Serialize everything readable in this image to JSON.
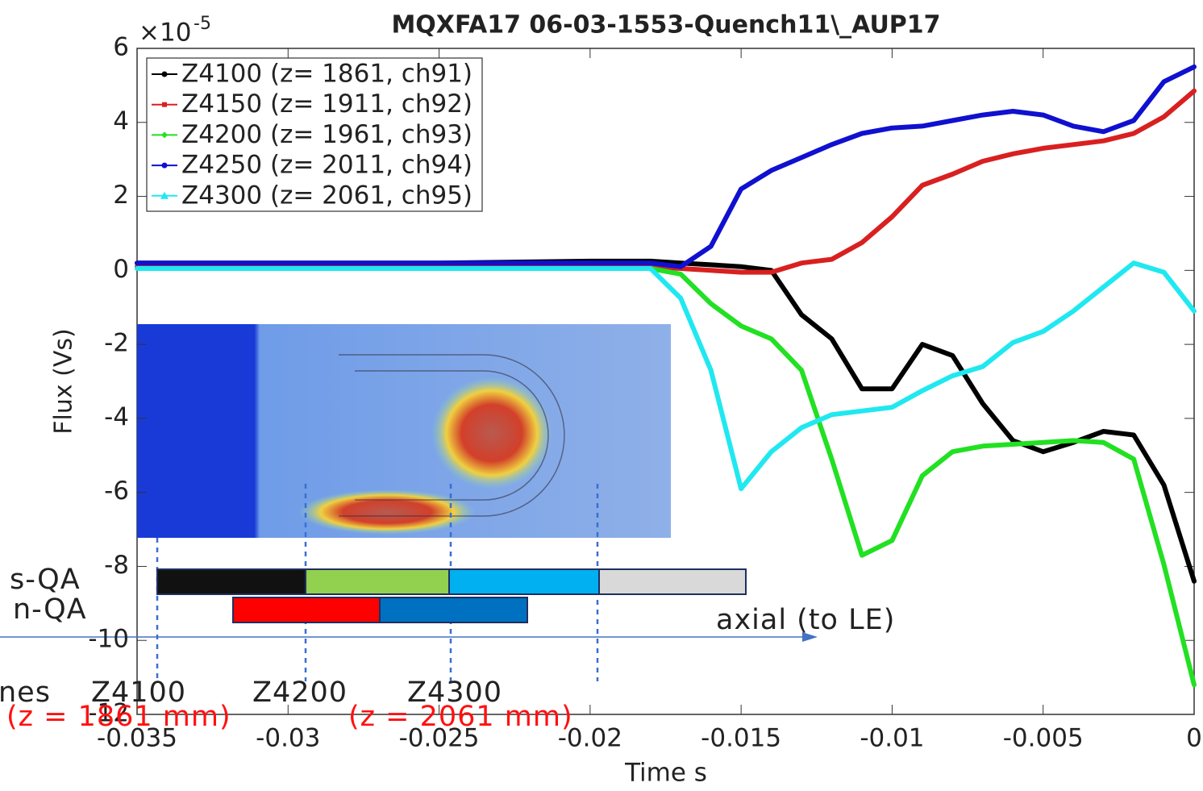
{
  "chart_data": {
    "type": "line",
    "title": "MQXFA17 06-03-1553-Quench11\\_AUP17",
    "x_label": "Time  s",
    "y_label": "Flux (Vs)",
    "y_scale_base": "×10",
    "y_scale_exponent": "-5",
    "x": [
      -0.035,
      -0.03,
      -0.025,
      -0.02,
      -0.018,
      -0.017,
      -0.016,
      -0.015,
      -0.014,
      -0.013,
      -0.012,
      -0.011,
      -0.01,
      -0.009,
      -0.008,
      -0.007,
      -0.006,
      -0.005,
      -0.004,
      -0.003,
      -0.002,
      -0.001,
      0
    ],
    "series": [
      {
        "name": "Z4100 (z= 1861, ch91)",
        "color": "#000000",
        "marker": "circle",
        "values": [
          0.2,
          0.2,
          0.2,
          0.25,
          0.25,
          0.2,
          0.15,
          0.1,
          0,
          -1.2,
          -1.85,
          -3.2,
          -3.2,
          -2.0,
          -2.3,
          -3.6,
          -4.6,
          -4.9,
          -4.65,
          -4.35,
          -4.45,
          -5.8,
          -8.4
        ]
      },
      {
        "name": "Z4150 (z= 1911, ch92)",
        "color": "#d92020",
        "marker": "square",
        "values": [
          0.1,
          0.1,
          0.1,
          0.1,
          0.1,
          0.05,
          0,
          -0.05,
          -0.05,
          0.2,
          0.3,
          0.75,
          1.45,
          2.3,
          2.6,
          2.95,
          3.15,
          3.3,
          3.4,
          3.5,
          3.7,
          4.15,
          4.85
        ]
      },
      {
        "name": "Z4200 (z= 1961, ch93)",
        "color": "#22e022",
        "marker": "diamond",
        "values": [
          0.05,
          0.05,
          0.05,
          0.05,
          0.05,
          -0.1,
          -0.9,
          -1.5,
          -1.85,
          -2.7,
          -5.1,
          -7.7,
          -7.3,
          -5.55,
          -4.9,
          -4.75,
          -4.7,
          -4.65,
          -4.6,
          -4.65,
          -5.1,
          -7.95,
          -11.2
        ]
      },
      {
        "name": "Z4250 (z= 2011, ch94)",
        "color": "#1010d0",
        "marker": "circle",
        "values": [
          0.2,
          0.2,
          0.2,
          0.2,
          0.2,
          0.1,
          0.65,
          2.2,
          2.7,
          3.05,
          3.4,
          3.7,
          3.85,
          3.9,
          4.05,
          4.2,
          4.3,
          4.2,
          3.9,
          3.75,
          4.05,
          5.1,
          5.5
        ]
      },
      {
        "name": "Z4300 (z= 2061, ch95)",
        "color": "#20e8f0",
        "marker": "triangle",
        "values": [
          0.05,
          0.05,
          0.05,
          0.05,
          0.05,
          -0.75,
          -2.7,
          -5.9,
          -4.9,
          -4.25,
          -3.9,
          -3.8,
          -3.7,
          -3.25,
          -2.85,
          -2.6,
          -1.95,
          -1.65,
          -1.1,
          -0.45,
          0.2,
          -0.05,
          -1.1
        ]
      }
    ],
    "xlim": [
      -0.035,
      0
    ],
    "xticks": [
      -0.035,
      -0.03,
      -0.025,
      -0.02,
      -0.015,
      -0.01,
      -0.005,
      0
    ],
    "ylim": [
      -12,
      6
    ],
    "yticks": [
      -12,
      -10,
      -8,
      -6,
      -4,
      -2,
      0,
      2,
      4,
      6
    ],
    "grid": false,
    "legend": "upper-left",
    "annotations": [
      "s-QA",
      "n-QA",
      "axial (to LE)",
      "nes",
      "Z4100",
      "Z4200",
      "Z4300",
      "(z = 1861 mm)",
      "(z = 2061 mm)"
    ]
  }
}
